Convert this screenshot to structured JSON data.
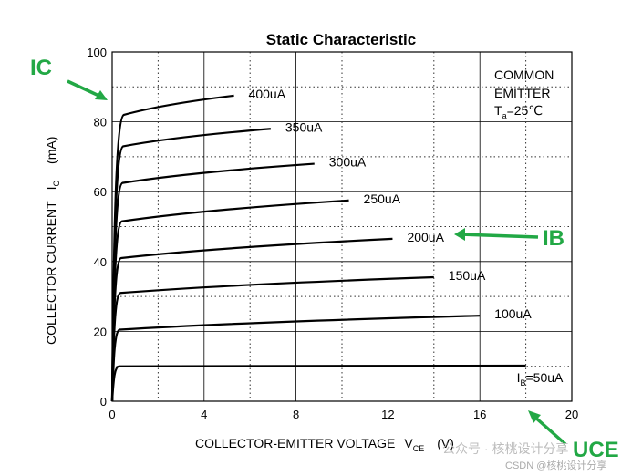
{
  "chart_data": {
    "type": "line",
    "title": "Static Characteristic",
    "xlabel": "COLLECTOR-EMITTER VOLTAGE",
    "xlabel_symbol": "V",
    "xlabel_subscript": "CE",
    "xlabel_unit": "(V)",
    "ylabel": "COLLECTOR CURRENT",
    "ylabel_symbol": "I",
    "ylabel_subscript": "C",
    "ylabel_unit": "(mA)",
    "xlim": [
      0,
      20
    ],
    "ylim": [
      0,
      100
    ],
    "xticks": [
      "0",
      "4",
      "8",
      "12",
      "16",
      "20"
    ],
    "yticks": [
      "0",
      "20",
      "40",
      "60",
      "80",
      "100"
    ],
    "grid": true,
    "grid_style": "dotted",
    "note": {
      "line1": "COMMON",
      "line2": "EMITTER",
      "line3_symbol": "T",
      "line3_sub": "a",
      "line3_rest": "=25℃"
    },
    "series": [
      {
        "name": "I",
        "label_sub": "B",
        "label_rest": "=50uA",
        "sat": 10,
        "end": [
          18,
          10.2
        ]
      },
      {
        "name": "100uA",
        "sat": 20.5,
        "end": [
          16,
          24.5
        ]
      },
      {
        "name": "150uA",
        "sat": 31,
        "end": [
          14,
          35.5
        ]
      },
      {
        "name": "200uA",
        "sat": 41,
        "end": [
          12.2,
          46.5
        ]
      },
      {
        "name": "250uA",
        "sat": 51.5,
        "end": [
          10.3,
          57.5
        ]
      },
      {
        "name": "300uA",
        "sat": 62.5,
        "end": [
          8.8,
          68
        ]
      },
      {
        "name": "350uA",
        "sat": 73,
        "end": [
          6.9,
          78
        ]
      },
      {
        "name": "400uA",
        "sat": 82,
        "end": [
          5.3,
          87.5
        ]
      }
    ]
  },
  "annotations": {
    "ic": "IC",
    "ib": "IB",
    "uce": "UCE",
    "color": "#22a845"
  },
  "watermark": {
    "line1": "公众号 · 核桃设计分享",
    "line2": "CSDN @核桃设计分享"
  }
}
